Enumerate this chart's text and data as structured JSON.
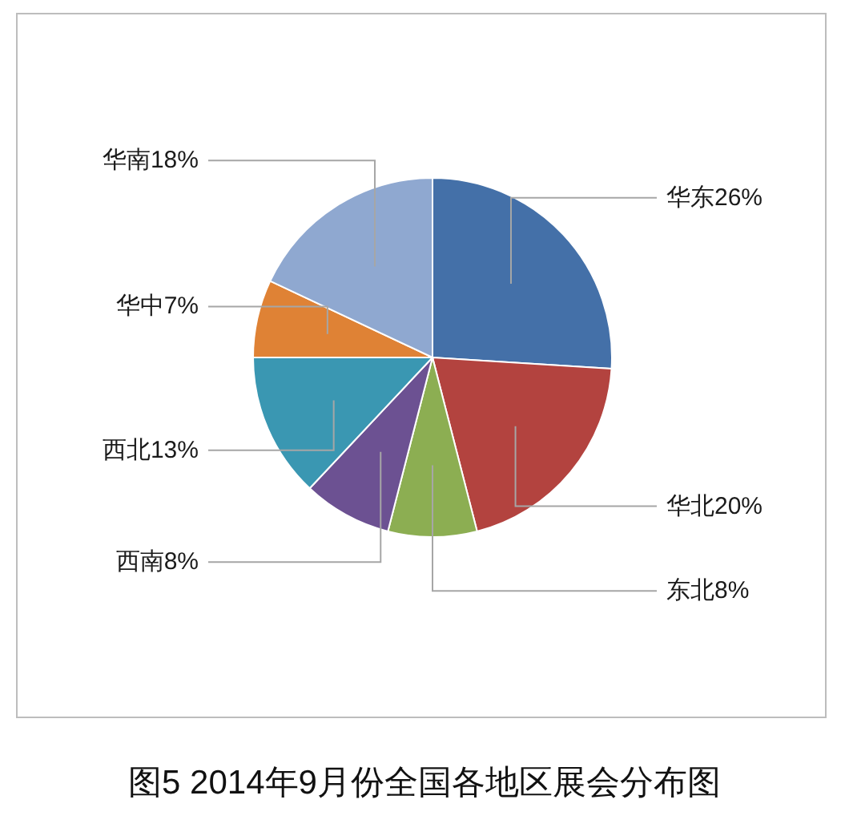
{
  "chart_data": {
    "type": "pie",
    "title": "图5 2014年9月份全国各地区展会分布图",
    "categories": [
      "华东",
      "华北",
      "东北",
      "西南",
      "西北",
      "华中",
      "华南"
    ],
    "values": [
      26,
      20,
      8,
      8,
      13,
      7,
      18
    ],
    "colors": [
      "#4470a8",
      "#b3433f",
      "#8cae52",
      "#6c5192",
      "#3a97b2",
      "#df8235",
      "#8fa8d0"
    ],
    "value_labels": [
      "26%",
      "20%",
      "8%",
      "8%",
      "13%",
      "7%",
      "18%"
    ]
  }
}
